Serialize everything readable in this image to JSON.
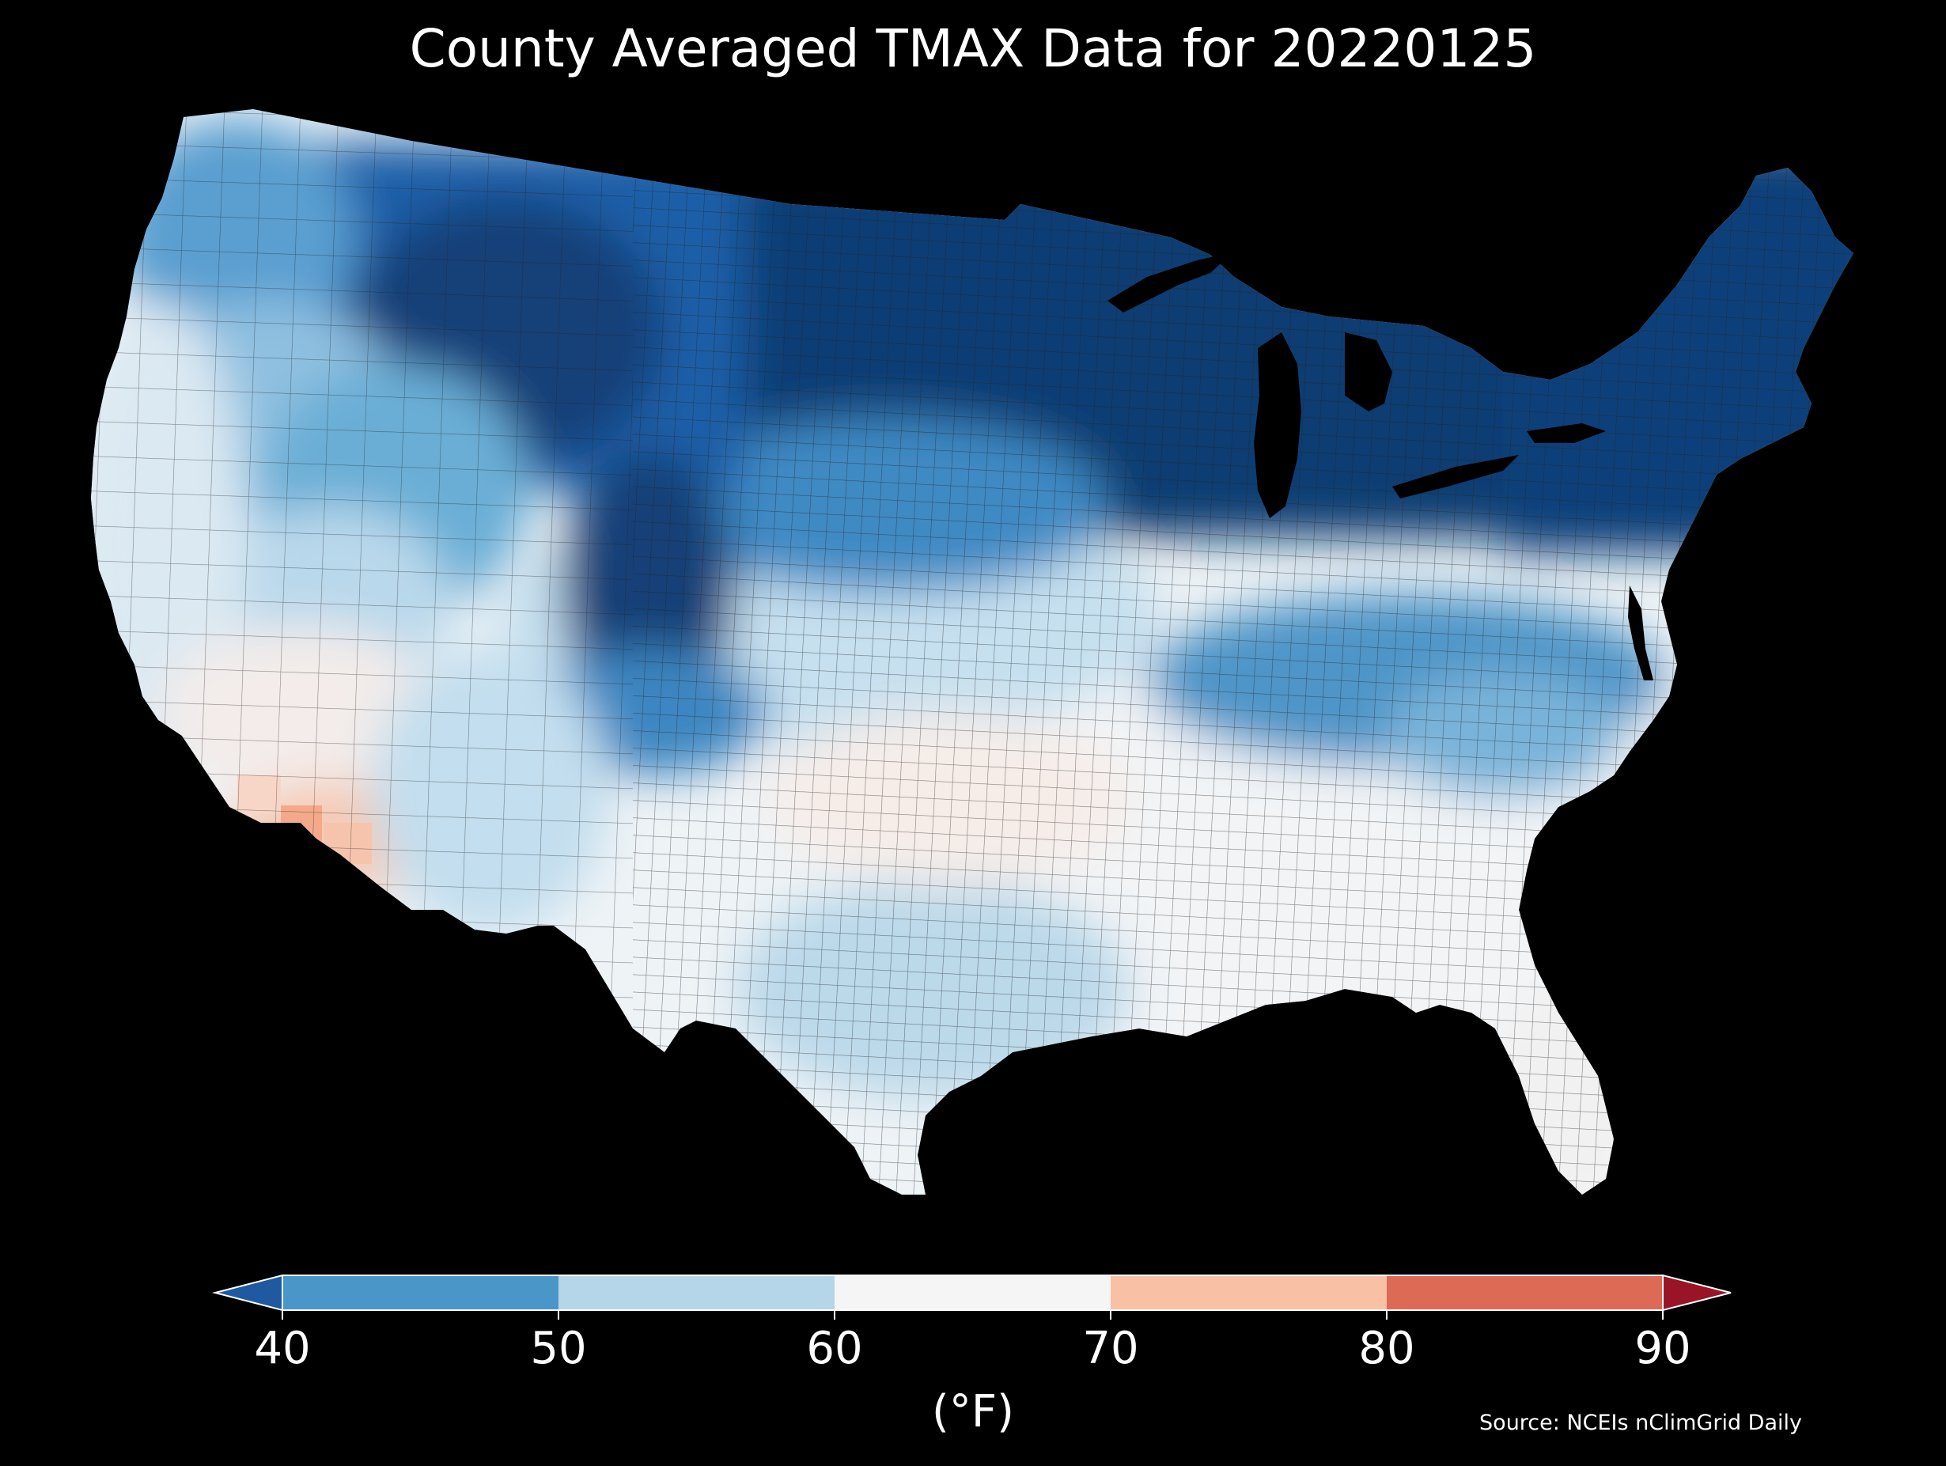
{
  "title": "County Averaged TMAX Data for 20220125",
  "units": "(°F)",
  "source": "Source: NCEIs nClimGrid Daily",
  "colorbar": {
    "ticks": [
      "40",
      "50",
      "60",
      "70",
      "80",
      "90"
    ],
    "under_color": "#1f5aa0",
    "over_color": "#9a1428",
    "bins": [
      {
        "from": 40,
        "to": 50,
        "color": "#4a96c8"
      },
      {
        "from": 50,
        "to": 60,
        "color": "#b5d6e8"
      },
      {
        "from": 60,
        "to": 70,
        "color": "#f5f5f5"
      },
      {
        "from": 70,
        "to": 80,
        "color": "#f8c1a6"
      },
      {
        "from": 80,
        "to": 90,
        "color": "#dd6a55"
      }
    ]
  },
  "colors": {
    "background": "#000000",
    "coldest": "#0a3a6e",
    "cold": "#2a6db3",
    "cool": "#6aaed6",
    "mild": "#c6e0ef",
    "neutral": "#f2f4f6",
    "warm": "#f7dcd0",
    "warmer": "#f4a98a",
    "county_border": "#222222"
  },
  "regions": [
    {
      "name": "region-pacific-northwest",
      "tmax_band": "40-50"
    },
    {
      "name": "region-northern-rockies",
      "tmax_band": "<40"
    },
    {
      "name": "region-northern-plains",
      "tmax_band": "<40"
    },
    {
      "name": "region-great-lakes",
      "tmax_band": "<40"
    },
    {
      "name": "region-northeast",
      "tmax_band": "<40"
    },
    {
      "name": "region-mid-atlantic",
      "tmax_band": "40-50"
    },
    {
      "name": "region-california",
      "tmax_band": "50-60"
    },
    {
      "name": "region-great-basin",
      "tmax_band": "50-60"
    },
    {
      "name": "region-desert-southwest",
      "tmax_band": "60-70"
    },
    {
      "name": "region-southern-arizona",
      "tmax_band": "70-80"
    },
    {
      "name": "region-central-rockies",
      "tmax_band": "<40"
    },
    {
      "name": "region-central-plains",
      "tmax_band": "50-60"
    },
    {
      "name": "region-southern-plains",
      "tmax_band": "60-70"
    },
    {
      "name": "region-texas",
      "tmax_band": "50-60"
    },
    {
      "name": "region-southeast",
      "tmax_band": "60-70"
    },
    {
      "name": "region-florida",
      "tmax_band": "60-70"
    }
  ]
}
